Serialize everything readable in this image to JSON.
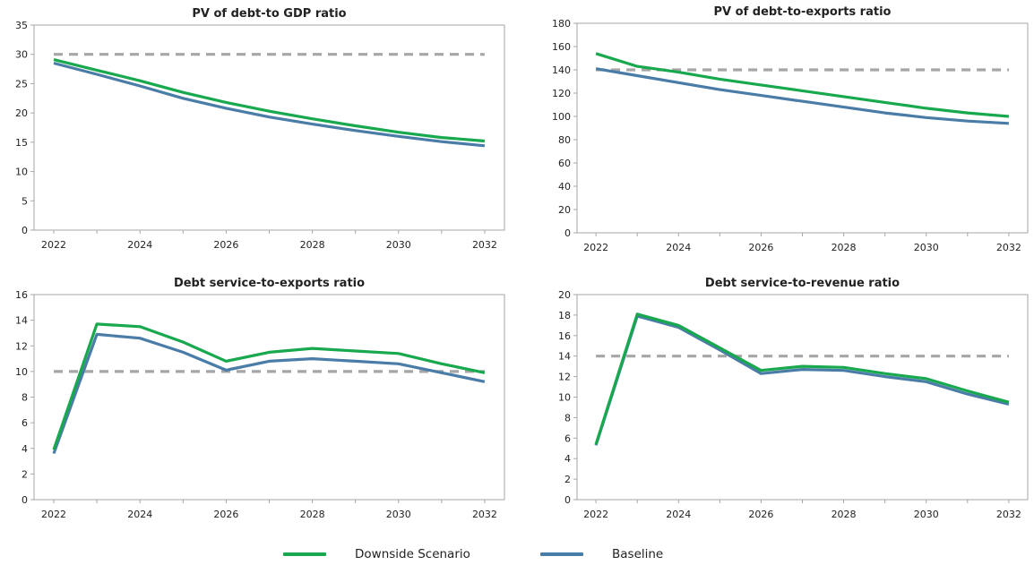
{
  "chart_data": [
    {
      "type": "line",
      "title": "PV of debt-to GDP ratio",
      "x": [
        2022,
        2023,
        2024,
        2025,
        2026,
        2027,
        2028,
        2029,
        2030,
        2031,
        2032
      ],
      "x_ticks": [
        "2022",
        "2024",
        "2026",
        "2028",
        "2030",
        "2032"
      ],
      "ylim": [
        0,
        35
      ],
      "y_ticks": [
        "0",
        "5",
        "10",
        "15",
        "20",
        "25",
        "30",
        "35"
      ],
      "series": [
        {
          "name": "Downside Scenario",
          "values": [
            29.1,
            27.3,
            25.5,
            23.5,
            21.8,
            20.3,
            19.0,
            17.8,
            16.7,
            15.8,
            15.2
          ]
        },
        {
          "name": "Baseline",
          "values": [
            28.5,
            26.6,
            24.6,
            22.5,
            20.8,
            19.3,
            18.1,
            17.0,
            16.0,
            15.1,
            14.4
          ]
        },
        {
          "name": "Threshold",
          "values": [
            30,
            30,
            30,
            30,
            30,
            30,
            30,
            30,
            30,
            30,
            30
          ]
        }
      ]
    },
    {
      "type": "line",
      "title": "PV of debt-to-exports ratio",
      "x": [
        2022,
        2023,
        2024,
        2025,
        2026,
        2027,
        2028,
        2029,
        2030,
        2031,
        2032
      ],
      "x_ticks": [
        "2022",
        "2024",
        "2026",
        "2028",
        "2030",
        "2032"
      ],
      "ylim": [
        0,
        180
      ],
      "y_ticks": [
        "0",
        "20",
        "40",
        "60",
        "80",
        "100",
        "120",
        "140",
        "160",
        "180"
      ],
      "series": [
        {
          "name": "Downside Scenario",
          "values": [
            154,
            143,
            138,
            132,
            127,
            122,
            117,
            112,
            107,
            103,
            100
          ]
        },
        {
          "name": "Baseline",
          "values": [
            141,
            135,
            129,
            123,
            118,
            113,
            108,
            103,
            99,
            96,
            94
          ]
        },
        {
          "name": "Threshold",
          "values": [
            140,
            140,
            140,
            140,
            140,
            140,
            140,
            140,
            140,
            140,
            140
          ]
        }
      ]
    },
    {
      "type": "line",
      "title": "Debt service-to-exports ratio",
      "x": [
        2022,
        2023,
        2024,
        2025,
        2026,
        2027,
        2028,
        2029,
        2030,
        2031,
        2032
      ],
      "x_ticks": [
        "2022",
        "2024",
        "2026",
        "2028",
        "2030",
        "2032"
      ],
      "ylim": [
        0,
        16
      ],
      "y_ticks": [
        "0",
        "2",
        "4",
        "6",
        "8",
        "10",
        "12",
        "14",
        "16"
      ],
      "series": [
        {
          "name": "Downside Scenario",
          "values": [
            3.9,
            13.7,
            13.5,
            12.3,
            10.8,
            11.5,
            11.8,
            11.6,
            11.4,
            10.6,
            9.9
          ]
        },
        {
          "name": "Baseline",
          "values": [
            3.6,
            12.9,
            12.6,
            11.5,
            10.1,
            10.8,
            11.0,
            10.8,
            10.6,
            9.9,
            9.2
          ]
        },
        {
          "name": "Threshold",
          "values": [
            10,
            10,
            10,
            10,
            10,
            10,
            10,
            10,
            10,
            10,
            10
          ]
        }
      ]
    },
    {
      "type": "line",
      "title": "Debt service-to-revenue ratio",
      "x": [
        2022,
        2023,
        2024,
        2025,
        2026,
        2027,
        2028,
        2029,
        2030,
        2031,
        2032
      ],
      "x_ticks": [
        "2022",
        "2024",
        "2026",
        "2028",
        "2030",
        "2032"
      ],
      "ylim": [
        0,
        20
      ],
      "y_ticks": [
        "0",
        "2",
        "4",
        "6",
        "8",
        "10",
        "12",
        "14",
        "16",
        "18",
        "20"
      ],
      "series": [
        {
          "name": "Downside Scenario",
          "values": [
            5.4,
            18.1,
            17.0,
            14.8,
            12.6,
            13.0,
            12.9,
            12.3,
            11.8,
            10.6,
            9.5
          ]
        },
        {
          "name": "Baseline",
          "values": [
            5.3,
            17.9,
            16.8,
            14.6,
            12.3,
            12.7,
            12.6,
            12.0,
            11.5,
            10.3,
            9.3
          ]
        },
        {
          "name": "Threshold",
          "values": [
            14,
            14,
            14,
            14,
            14,
            14,
            14,
            14,
            14,
            14,
            14
          ]
        }
      ]
    }
  ],
  "legend": {
    "placement": "bottom-center",
    "items": [
      {
        "label": "Downside Scenario",
        "color": "#18a84e"
      },
      {
        "label": "Baseline",
        "color": "#4a7ca8"
      }
    ]
  },
  "colors": {
    "downside": "#18a84e",
    "baseline": "#4a7ca8",
    "threshold": "#a6a6a6",
    "axis": "#a6a6a6",
    "text": "#222222"
  }
}
